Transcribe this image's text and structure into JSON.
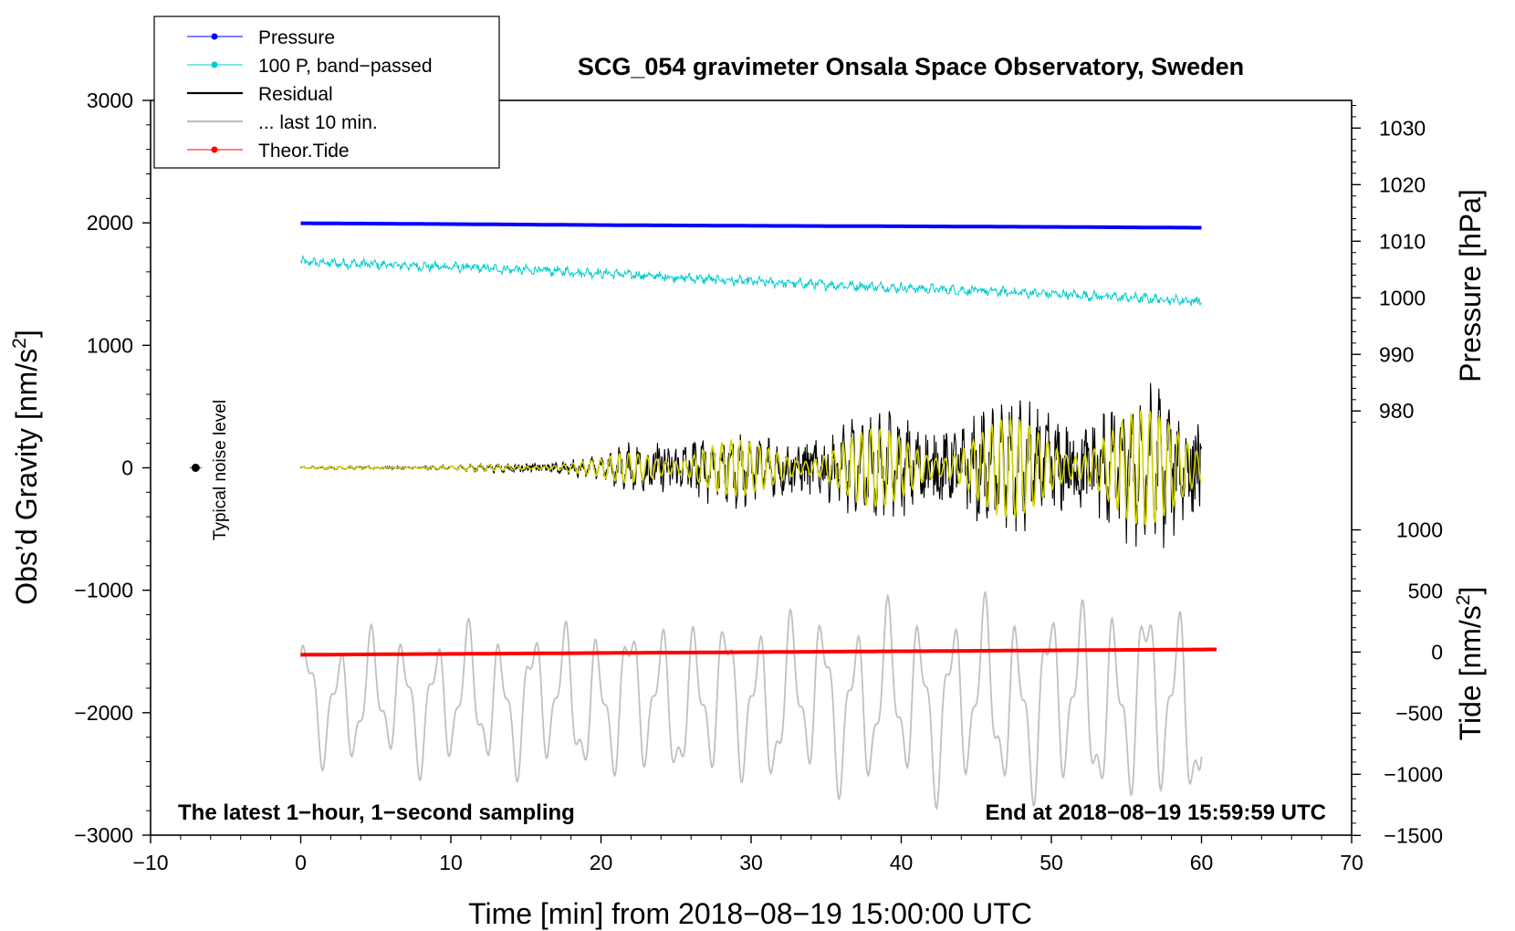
{
  "chart_data": {
    "type": "line",
    "title": "SCG_054 gravimeter Onsala Space Observatory, Sweden",
    "xlabel": "Time [min] from 2018−08−19 15:00:00 UTC",
    "ylabel_left": "Obs’d Gravity [nm/s",
    "ylabel_left_sup": "2",
    "ylabel_left_tail": "]",
    "ylabel_right_pressure": "Pressure [hPa]",
    "ylabel_right_tide": "Tide [nm/s",
    "ylabel_right_tide_sup": "2",
    "ylabel_right_tide_tail": "]",
    "xlim": [
      -10,
      70
    ],
    "ylim_left": [
      -3000,
      3000
    ],
    "xticks": [
      -10,
      0,
      10,
      20,
      30,
      40,
      50,
      60,
      70
    ],
    "xtick_labels": [
      "−10",
      "0",
      "10",
      "20",
      "30",
      "40",
      "50",
      "60",
      "70"
    ],
    "yticks_left": [
      3000,
      2000,
      1000,
      0,
      -1000,
      -2000,
      -3000
    ],
    "ytick_labels_left": [
      "3000",
      "2000",
      "1000",
      "0",
      "−1000",
      "−2000",
      "−3000"
    ],
    "pressure_ticks": [
      1030,
      1020,
      1010,
      1000,
      990,
      980
    ],
    "pressure_tick_labels": [
      "1030",
      "1020",
      "1010",
      "1000",
      "990",
      "980"
    ],
    "pressure_to_gravity": {
      "hpa_ref": 1010,
      "gravity_at_ref": 1850,
      "gravity_per_hpa": 46.2
    },
    "tide_ticks": [
      1000,
      500,
      0,
      -500,
      -1000,
      -1500
    ],
    "tide_tick_labels": [
      "1000",
      "500",
      "0",
      "−500",
      "−1000",
      "−1500"
    ],
    "tide_to_gravity": {
      "gravity_at_zero": -1505,
      "gravity_per_unit": 0.998
    },
    "series": [
      {
        "name": "Pressure",
        "color": "#0000ff",
        "x": [
          0,
          10,
          20,
          30,
          40,
          50,
          60
        ],
        "y": [
          1997,
          1990,
          1982,
          1976,
          1972,
          1967,
          1960
        ]
      },
      {
        "name": "100 P, band−passed",
        "color": "#00cccc",
        "x": [
          0,
          10,
          20,
          30,
          40,
          50,
          60
        ],
        "y": [
          1680,
          1640,
          1590,
          1520,
          1470,
          1420,
          1360
        ]
      },
      {
        "name": "Residual",
        "color": "#000000",
        "x": [
          0,
          10,
          20,
          24,
          30,
          40,
          50,
          60
        ],
        "envelope": [
          15,
          25,
          110,
          420,
          350,
          550,
          700,
          800
        ]
      },
      {
        "name": "... last 10 min.",
        "color": "#c0c0c0",
        "x": [
          0,
          60
        ],
        "y_center": -1900,
        "envelope": [
          600,
          1000
        ]
      },
      {
        "name": "Theor.Tide",
        "color": "#ff0000",
        "x": [
          0,
          61
        ],
        "y": [
          -1527,
          -1483
        ]
      }
    ],
    "filtered_trace_color": "#d4d400",
    "noise_marker": {
      "x": -7,
      "y": 0,
      "label": "Typical noise level"
    },
    "annotations": {
      "bottom_left": "The latest 1−hour, 1−second sampling",
      "bottom_right": "End at 2018−08−19 15:59:59 UTC"
    },
    "legend_position": "top-left",
    "grid": false
  }
}
